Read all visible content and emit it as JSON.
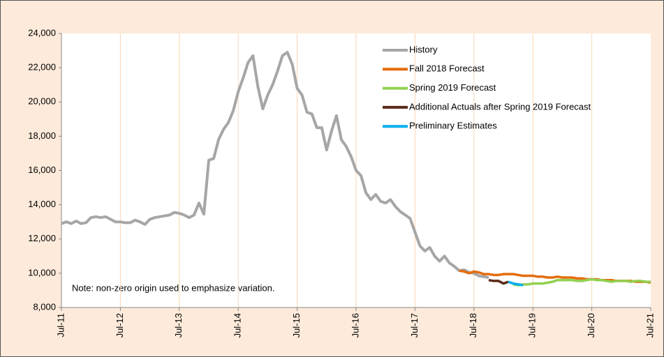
{
  "chart_data": {
    "type": "line",
    "annotation": "Note: non-zero origin used to emphasize variation.",
    "categories": [
      "Jul-11",
      null,
      null,
      null,
      null,
      null,
      null,
      null,
      null,
      null,
      null,
      null,
      "Jul-12",
      null,
      null,
      null,
      null,
      null,
      null,
      null,
      null,
      null,
      null,
      null,
      "Jul-13",
      null,
      null,
      null,
      null,
      null,
      null,
      null,
      null,
      null,
      null,
      null,
      "Jul-14",
      null,
      null,
      null,
      null,
      null,
      null,
      null,
      null,
      null,
      null,
      null,
      "Jul-15",
      null,
      null,
      null,
      null,
      null,
      null,
      null,
      null,
      null,
      null,
      null,
      "Jul-16",
      null,
      null,
      null,
      null,
      null,
      null,
      null,
      null,
      null,
      null,
      null,
      "Jul-17",
      null,
      null,
      null,
      null,
      null,
      null,
      null,
      null,
      null,
      null,
      null,
      "Jul-18",
      null,
      null,
      null,
      null,
      null,
      null,
      null,
      null,
      null,
      null,
      null,
      "Jul-19",
      null,
      null,
      null,
      null,
      null,
      null,
      null,
      null,
      null,
      null,
      null,
      "Jul-20",
      null,
      null,
      null,
      null,
      null,
      null,
      null,
      null,
      null,
      null,
      null,
      "Jul-21"
    ],
    "series": [
      {
        "name": "History",
        "color": "#a6a6a6",
        "values": [
          12900,
          13000,
          12900,
          13050,
          12900,
          12950,
          13250,
          13300,
          13250,
          13300,
          13150,
          13000,
          13000,
          12950,
          12950,
          13100,
          13000,
          12850,
          13150,
          13250,
          13300,
          13350,
          13400,
          13550,
          13500,
          13400,
          13250,
          13400,
          14100,
          13450,
          16600,
          16700,
          17800,
          18400,
          18800,
          19500,
          20600,
          21400,
          22300,
          22700,
          20900,
          19600,
          20400,
          21000,
          21800,
          22700,
          22900,
          22200,
          20800,
          20400,
          19400,
          19300,
          18500,
          18500,
          17200,
          18300,
          19200,
          17800,
          17400,
          16800,
          16000,
          15700,
          14700,
          14300,
          14600,
          14200,
          14100,
          14300,
          13900,
          13600,
          13400,
          13200,
          12400,
          11600,
          11300,
          11500,
          11000,
          10700,
          11000,
          10600,
          10400,
          10150,
          10200,
          10050,
          10000,
          9850,
          9800,
          9750,
          null,
          null,
          null,
          null,
          null,
          null,
          null,
          null,
          null,
          null,
          null,
          null,
          null,
          null,
          null,
          null,
          null,
          null,
          null,
          null,
          null,
          null,
          null,
          null,
          null,
          null,
          null,
          null,
          null,
          null,
          null,
          null,
          null
        ]
      },
      {
        "name": "Fall 2018 Forecast",
        "color": "#e46c0a",
        "values": [
          null,
          null,
          null,
          null,
          null,
          null,
          null,
          null,
          null,
          null,
          null,
          null,
          null,
          null,
          null,
          null,
          null,
          null,
          null,
          null,
          null,
          null,
          null,
          null,
          null,
          null,
          null,
          null,
          null,
          null,
          null,
          null,
          null,
          null,
          null,
          null,
          null,
          null,
          null,
          null,
          null,
          null,
          null,
          null,
          null,
          null,
          null,
          null,
          null,
          null,
          null,
          null,
          null,
          null,
          null,
          null,
          null,
          null,
          null,
          null,
          null,
          null,
          null,
          null,
          null,
          null,
          null,
          null,
          null,
          null,
          null,
          null,
          null,
          null,
          null,
          null,
          null,
          null,
          null,
          null,
          null,
          10150,
          10100,
          10000,
          10100,
          10050,
          9950,
          9950,
          9900,
          9900,
          9950,
          9950,
          9950,
          9900,
          9850,
          9850,
          9850,
          9800,
          9800,
          9750,
          9750,
          9800,
          9750,
          9750,
          9750,
          9700,
          9700,
          9650,
          9650,
          9650,
          9600,
          9600,
          9600,
          9550,
          9550,
          9550,
          9550,
          9500,
          9500,
          9500,
          9450
        ]
      },
      {
        "name": "Spring 2019 Forecast",
        "color": "#92d050",
        "values": [
          null,
          null,
          null,
          null,
          null,
          null,
          null,
          null,
          null,
          null,
          null,
          null,
          null,
          null,
          null,
          null,
          null,
          null,
          null,
          null,
          null,
          null,
          null,
          null,
          null,
          null,
          null,
          null,
          null,
          null,
          null,
          null,
          null,
          null,
          null,
          null,
          null,
          null,
          null,
          null,
          null,
          null,
          null,
          null,
          null,
          null,
          null,
          null,
          null,
          null,
          null,
          null,
          null,
          null,
          null,
          null,
          null,
          null,
          null,
          null,
          null,
          null,
          null,
          null,
          null,
          null,
          null,
          null,
          null,
          null,
          null,
          null,
          null,
          null,
          null,
          null,
          null,
          null,
          null,
          null,
          null,
          null,
          null,
          null,
          null,
          null,
          null,
          null,
          null,
          null,
          null,
          null,
          9350,
          9300,
          9350,
          9350,
          9400,
          9400,
          9400,
          9450,
          9500,
          9600,
          9600,
          9600,
          9600,
          9550,
          9550,
          9600,
          9650,
          9600,
          9600,
          9550,
          9500,
          9550,
          9550,
          9550,
          9500,
          9550,
          9550,
          9500,
          9500
        ]
      },
      {
        "name": "Additional Actuals after Spring 2019 Forecast",
        "color": "#5a2a18",
        "values": [
          null,
          null,
          null,
          null,
          null,
          null,
          null,
          null,
          null,
          null,
          null,
          null,
          null,
          null,
          null,
          null,
          null,
          null,
          null,
          null,
          null,
          null,
          null,
          null,
          null,
          null,
          null,
          null,
          null,
          null,
          null,
          null,
          null,
          null,
          null,
          null,
          null,
          null,
          null,
          null,
          null,
          null,
          null,
          null,
          null,
          null,
          null,
          null,
          null,
          null,
          null,
          null,
          null,
          null,
          null,
          null,
          null,
          null,
          null,
          null,
          null,
          null,
          null,
          null,
          null,
          null,
          null,
          null,
          null,
          null,
          null,
          null,
          null,
          null,
          null,
          null,
          null,
          null,
          null,
          null,
          null,
          null,
          null,
          null,
          null,
          null,
          null,
          9600,
          9550,
          9550,
          9400,
          9500,
          null,
          null,
          null,
          null,
          null,
          null,
          null,
          null,
          null,
          null,
          null,
          null,
          null,
          null,
          null,
          null,
          null,
          null,
          null,
          null,
          null,
          null,
          null,
          null,
          null,
          null,
          null,
          null,
          null
        ]
      },
      {
        "name": "Preliminary Estimates",
        "color": "#00b0f0",
        "values": [
          null,
          null,
          null,
          null,
          null,
          null,
          null,
          null,
          null,
          null,
          null,
          null,
          null,
          null,
          null,
          null,
          null,
          null,
          null,
          null,
          null,
          null,
          null,
          null,
          null,
          null,
          null,
          null,
          null,
          null,
          null,
          null,
          null,
          null,
          null,
          null,
          null,
          null,
          null,
          null,
          null,
          null,
          null,
          null,
          null,
          null,
          null,
          null,
          null,
          null,
          null,
          null,
          null,
          null,
          null,
          null,
          null,
          null,
          null,
          null,
          null,
          null,
          null,
          null,
          null,
          null,
          null,
          null,
          null,
          null,
          null,
          null,
          null,
          null,
          null,
          null,
          null,
          null,
          null,
          null,
          null,
          null,
          null,
          null,
          null,
          null,
          null,
          null,
          null,
          null,
          null,
          9500,
          9400,
          9350,
          9300,
          null,
          null,
          null,
          null,
          null,
          null,
          null,
          null,
          null,
          null,
          null,
          null,
          null,
          null,
          null,
          null,
          null,
          null,
          null,
          null,
          null,
          null,
          null,
          null,
          null,
          null
        ]
      }
    ],
    "ylim": [
      8000,
      24000
    ],
    "yticks": [
      {
        "value": 8000,
        "label": "8,000"
      },
      {
        "value": 10000,
        "label": "10,000"
      },
      {
        "value": 12000,
        "label": "12,000"
      },
      {
        "value": 14000,
        "label": "14,000"
      },
      {
        "value": 16000,
        "label": "16,000"
      },
      {
        "value": 18000,
        "label": "18,000"
      },
      {
        "value": 20000,
        "label": "20,000"
      },
      {
        "value": 22000,
        "label": "22,000"
      },
      {
        "value": 24000,
        "label": "24,000"
      }
    ],
    "grid": "x",
    "legend": "upper right"
  }
}
